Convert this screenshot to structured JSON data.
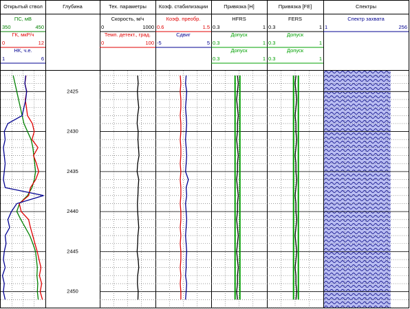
{
  "chart_data": {
    "type": "well-log",
    "ylim": [
      2422.4,
      2452
    ],
    "yticks": [
      2425,
      2430,
      2435,
      2440,
      2445,
      2450
    ],
    "grid": true,
    "minor_grid_step": 1,
    "depth": [
      2423,
      2424,
      2425,
      2426,
      2427,
      2428,
      2429,
      2430,
      2431,
      2432,
      2433,
      2434,
      2435,
      2436,
      2437,
      2438,
      2439,
      2440,
      2441,
      2442,
      2443,
      2444,
      2445,
      2446,
      2447,
      2448,
      2449,
      2450,
      2451
    ],
    "tracks": [
      {
        "title": "Открытый ствол",
        "curves": [
          {
            "name": "ПС, мВ",
            "color": "#008000",
            "xlim": [
              350,
              450
            ],
            "values": [
              378,
              382,
              386,
              390,
              394,
              398,
              402,
              410,
              418,
              422,
              424,
              426,
              428,
              425,
              420,
              410,
              392,
              386,
              395,
              405,
              415,
              422,
              428,
              430,
              432,
              431,
              433,
              432,
              434
            ]
          },
          {
            "name": "ГК, мкР/ч",
            "color": "#e00000",
            "xlim": [
              0,
              12
            ],
            "values": [
              6.8,
              6.5,
              7.0,
              6.6,
              6.9,
              7.2,
              8.5,
              9.0,
              8.4,
              10.0,
              8.8,
              9.6,
              10.2,
              9.4,
              8.0,
              7.5,
              5.0,
              5.5,
              7.5,
              8.0,
              8.6,
              9.2,
              9.8,
              10.3,
              10.8,
              10.4,
              11.0,
              10.6,
              11.2
            ]
          },
          {
            "name": "НК, ч.е.",
            "color": "#000090",
            "xlim": [
              1,
              6
            ],
            "values": [
              3.8,
              3.7,
              3.9,
              3.8,
              3.6,
              3.4,
              1.8,
              1.4,
              1.5,
              1.3,
              1.4,
              1.5,
              1.4,
              1.3,
              1.5,
              5.8,
              2.8,
              2.2,
              1.8,
              2.0,
              1.5,
              1.6,
              1.4,
              1.3,
              1.5,
              1.2,
              1.4,
              1.3,
              1.5
            ]
          }
        ]
      },
      {
        "title": "Глубина",
        "depth_track": true,
        "curves": []
      },
      {
        "title": "Тех. параметры",
        "curves": [
          {
            "name": "Скорость, м/ч",
            "color": "#000000",
            "xlim": [
              0,
              1000
            ],
            "values": [
              680,
              690,
              675,
              685,
              700,
              680,
              670,
              690,
              685,
              695,
              705,
              680,
              670,
              700,
              690,
              685,
              675,
              680,
              690,
              700,
              685,
              680,
              670,
              690,
              700,
              680,
              675,
              690,
              685
            ]
          },
          {
            "name": "Темп. детект., град.",
            "color": "#e00000",
            "xlim": [
              0,
              100
            ]
          }
        ]
      },
      {
        "title": "Коэф. стабилизации",
        "curves": [
          {
            "name": "Коэф. преобр.",
            "color": "#e00000",
            "xlim": [
              0.6,
              1.5
            ],
            "values": [
              1.0,
              1.01,
              1.0,
              1.01,
              1.01,
              1.0,
              1.01,
              1.01,
              1.0,
              1.01,
              1.01,
              1.0,
              1.01,
              1.0,
              1.01,
              1.01,
              1.0,
              1.01,
              1.01,
              1.0,
              1.01,
              1.0,
              1.01,
              1.01,
              1.0,
              1.01,
              1.0,
              1.01,
              1.01
            ]
          },
          {
            "name": "Сдвиг",
            "color": "#000090",
            "xlim": [
              -5,
              5
            ],
            "values": [
              0.5,
              0.4,
              0.6,
              0.5,
              0.4,
              0.5,
              0.6,
              0.5,
              0.4,
              0.5,
              0.6,
              0.5,
              0.4,
              0.9,
              0.5,
              0.6,
              0.4,
              0.5,
              0.6,
              0.5,
              0.4,
              0.5,
              0.6,
              0.5,
              0.5,
              0.4,
              0.6,
              0.5,
              0.4
            ]
          }
        ]
      },
      {
        "title": "Привязка [H]",
        "curves": [
          {
            "name": "HFRS",
            "color": "#000000",
            "xlim": [
              0.3,
              1
            ],
            "values": [
              0.63,
              0.64,
              0.63,
              0.62,
              0.63,
              0.64,
              0.63,
              0.63,
              0.62,
              0.63,
              0.64,
              0.63,
              0.63,
              0.62,
              0.63,
              0.64,
              0.63,
              0.63,
              0.62,
              0.63,
              0.64,
              0.63,
              0.62,
              0.63,
              0.64,
              0.63,
              0.63,
              0.62,
              0.63
            ]
          },
          {
            "name": "Допуск",
            "color": "#00a000",
            "xlim": [
              0.3,
              1
            ],
            "values": [
              0.6,
              0.6,
              0.6,
              0.6,
              0.6,
              0.6,
              0.6,
              0.6,
              0.6,
              0.6,
              0.6,
              0.6,
              0.6,
              0.6,
              0.6,
              0.6,
              0.6,
              0.6,
              0.6,
              0.6,
              0.6,
              0.6,
              0.6,
              0.6,
              0.6,
              0.6,
              0.6,
              0.6,
              0.6
            ]
          },
          {
            "name": "Допуск",
            "color": "#00a000",
            "xlim": [
              0.3,
              1
            ],
            "values": [
              0.66,
              0.66,
              0.66,
              0.66,
              0.66,
              0.66,
              0.66,
              0.66,
              0.66,
              0.66,
              0.66,
              0.66,
              0.66,
              0.66,
              0.66,
              0.66,
              0.66,
              0.66,
              0.66,
              0.66,
              0.66,
              0.66,
              0.66,
              0.66,
              0.66,
              0.66,
              0.66,
              0.66,
              0.66
            ]
          }
        ]
      },
      {
        "title": "Привязка [FE]",
        "curves": [
          {
            "name": "FERS",
            "color": "#000000",
            "xlim": [
              0.3,
              1
            ],
            "values": [
              0.66,
              0.65,
              0.66,
              0.67,
              0.66,
              0.65,
              0.66,
              0.66,
              0.67,
              0.66,
              0.65,
              0.66,
              0.66,
              0.67,
              0.66,
              0.65,
              0.66,
              0.66,
              0.67,
              0.66,
              0.65,
              0.66,
              0.67,
              0.66,
              0.65,
              0.66,
              0.66,
              0.67,
              0.66
            ]
          },
          {
            "name": "Допуск",
            "color": "#00a000",
            "xlim": [
              0.3,
              1
            ],
            "values": [
              0.63,
              0.63,
              0.63,
              0.63,
              0.63,
              0.63,
              0.63,
              0.63,
              0.63,
              0.63,
              0.63,
              0.63,
              0.63,
              0.63,
              0.63,
              0.63,
              0.63,
              0.63,
              0.63,
              0.63,
              0.63,
              0.63,
              0.63,
              0.63,
              0.63,
              0.63,
              0.63,
              0.63,
              0.63
            ]
          },
          {
            "name": "Допуск",
            "color": "#00a000",
            "xlim": [
              0.3,
              1
            ],
            "values": [
              0.69,
              0.69,
              0.69,
              0.69,
              0.69,
              0.69,
              0.69,
              0.69,
              0.69,
              0.69,
              0.69,
              0.69,
              0.69,
              0.69,
              0.69,
              0.69,
              0.69,
              0.69,
              0.69,
              0.69,
              0.69,
              0.69,
              0.69,
              0.69,
              0.69,
              0.69,
              0.69,
              0.69,
              0.69
            ]
          }
        ]
      },
      {
        "title": "Спектры",
        "spectrum": true,
        "curves": [
          {
            "name": "Спектр захвата",
            "color": "#000090",
            "xlim": [
              1,
              256
            ]
          }
        ]
      }
    ]
  }
}
